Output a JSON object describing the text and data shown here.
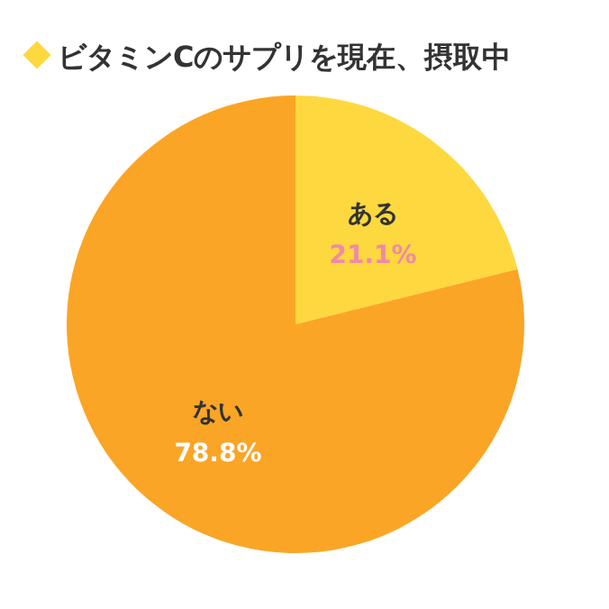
{
  "chart_data": {
    "type": "pie",
    "title": "ビタミンCのサプリを現在、摂取中",
    "categories": [
      "ある",
      "ない"
    ],
    "values": [
      21.1,
      78.8
    ],
    "colors": [
      "#fdd83f",
      "#fba526"
    ],
    "value_labels": [
      "21.1%",
      "78.8%"
    ]
  }
}
